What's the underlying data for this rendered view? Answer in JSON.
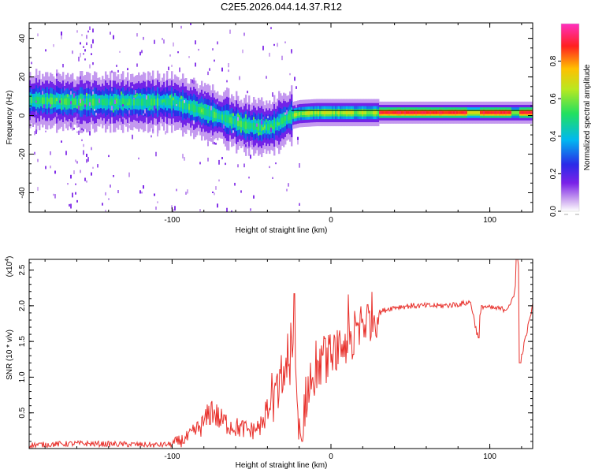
{
  "figure_title": "C2E5.2026.044.14.37.R12",
  "chart_data": [
    {
      "type": "heatmap",
      "title": "C2E5.2026.044.14.37.R12",
      "xlabel": "Height of straight line (km)",
      "ylabel": "Frequency (Hz)",
      "xlim": [
        -190,
        127
      ],
      "ylim": [
        -50,
        48
      ],
      "x_ticks": [
        -100,
        0,
        100
      ],
      "x_tick_labels": [
        "-100",
        "0",
        "100"
      ],
      "y_ticks": [
        -40,
        -20,
        0,
        20,
        40
      ],
      "y_tick_labels": [
        "-40",
        "-20",
        "0",
        "20",
        "40"
      ],
      "ridge": {
        "description_points_km_hz": [
          [
            -190,
            8
          ],
          [
            -160,
            7
          ],
          [
            -130,
            7
          ],
          [
            -100,
            7
          ],
          [
            -80,
            2
          ],
          [
            -65,
            -2
          ],
          [
            -55,
            -5
          ],
          [
            -45,
            -6
          ],
          [
            -38,
            -6
          ],
          [
            -32,
            -3
          ],
          [
            -25,
            0
          ],
          [
            -20,
            1
          ],
          [
            -10,
            1.5
          ],
          [
            0,
            1.5
          ],
          [
            20,
            1.5
          ],
          [
            40,
            1.5
          ],
          [
            60,
            1.5
          ],
          [
            80,
            1.5
          ],
          [
            100,
            1.5
          ],
          [
            127,
            1.5
          ]
        ],
        "peak_intensity_range_km": [
          30,
          127
        ],
        "peak_intensity": 0.92
      },
      "colorbar": {
        "label": "Normalized spectral amplitude",
        "range": [
          0.0,
          1.0
        ],
        "ticks": [
          0.0,
          0.2,
          0.4,
          0.6,
          0.8
        ],
        "tick_labels": [
          "0.0",
          "0.2",
          "0.4",
          "0.6",
          "0.8"
        ],
        "colormap": "rainbow (white → violet → blue → cyan → green → yellow → red → magenta)"
      }
    },
    {
      "type": "line",
      "title": "",
      "xlabel": "Height of straight line (km)",
      "ylabel": "SNR (10 * v/v)",
      "y_multiplier_label": "(x10",
      "y_multiplier_exp": "4",
      "y_multiplier_close": ")",
      "xlim": [
        -190,
        127
      ],
      "ylim": [
        0,
        2.65
      ],
      "x_ticks": [
        -100,
        0,
        100
      ],
      "x_tick_labels": [
        "-100",
        "0",
        "100"
      ],
      "y_ticks": [
        0.5,
        1.0,
        1.5,
        2.0,
        2.5
      ],
      "y_tick_labels": [
        "0.5",
        "1.0",
        "1.5",
        "2.0",
        "2.5"
      ],
      "color": "#e8302b",
      "series": [
        {
          "name": "SNR",
          "x": [
            -190,
            -160,
            -130,
            -110,
            -100,
            -90,
            -80,
            -75,
            -70,
            -60,
            -50,
            -45,
            -40,
            -35,
            -30,
            -25,
            -22,
            -20,
            -15,
            -10,
            -5,
            0,
            5,
            10,
            15,
            20,
            25,
            30,
            35,
            40,
            50,
            60,
            70,
            80,
            88,
            92,
            95,
            100,
            110,
            115,
            118,
            120,
            127
          ],
          "y": [
            0.05,
            0.07,
            0.06,
            0.05,
            0.06,
            0.15,
            0.35,
            0.55,
            0.4,
            0.3,
            0.25,
            0.3,
            0.5,
            0.7,
            1.0,
            1.4,
            0.8,
            0.15,
            0.8,
            1.1,
            1.2,
            1.3,
            1.4,
            1.5,
            1.6,
            1.75,
            1.85,
            1.9,
            1.95,
            1.98,
            2.0,
            2.0,
            2.0,
            2.02,
            2.05,
            1.6,
            2.0,
            1.97,
            1.95,
            2.1,
            2.6,
            1.3,
            2.0
          ]
        }
      ],
      "spikes": [
        {
          "x": -23,
          "y": 2.17
        },
        {
          "x": -18,
          "y": 0.1
        },
        {
          "x": 93,
          "y": 1.55
        },
        {
          "x": 117,
          "y": 2.65
        },
        {
          "x": 119,
          "y": 1.2
        }
      ]
    }
  ]
}
